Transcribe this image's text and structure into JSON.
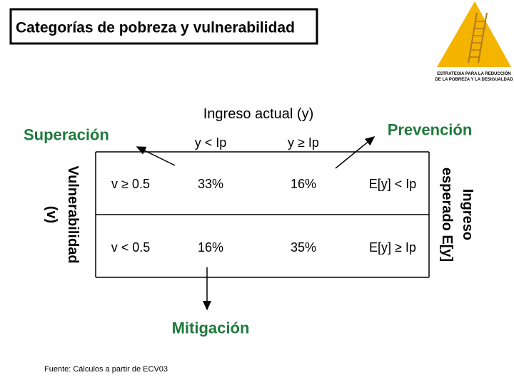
{
  "header": {
    "title": "Categorías de pobreza y vulnerabilidad"
  },
  "logo": {
    "lines": [
      "ESTRATEGIA PARA LA REDUCCIÓN",
      "DE LA POBREZA Y LA DESIGUALDAD"
    ]
  },
  "labels": {
    "top_left": "Superación",
    "top_right": "Prevención",
    "bottom": "Mitigación"
  },
  "table": {
    "column_header": "Ingreso actual (y)",
    "columns": [
      "y < Ip",
      "y ≥ Ip"
    ],
    "row_header": [
      "Vulnerabilidad",
      "(v)"
    ],
    "right_header": [
      "Ingreso",
      "esperado E[y]"
    ],
    "rows": [
      [
        "v ≥ 0.5",
        "33%",
        "16%",
        "E[y] < Ip"
      ],
      [
        "v < 0.5",
        "16%",
        "35%",
        "E[y] ≥ Ip"
      ]
    ]
  },
  "footer": "Fuente: Cálculos a partir de ECV03"
}
